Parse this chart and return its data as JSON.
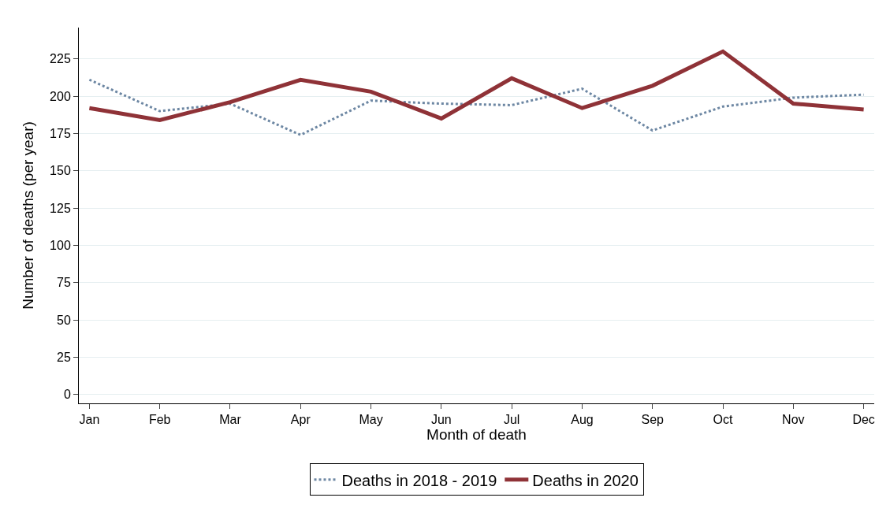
{
  "chart_data": {
    "type": "line",
    "xlabel": "Month of death",
    "ylabel": "Number of deaths (per year)",
    "categories": [
      "Jan",
      "Feb",
      "Mar",
      "Apr",
      "May",
      "Jun",
      "Jul",
      "Aug",
      "Sep",
      "Oct",
      "Nov",
      "Dec"
    ],
    "series": [
      {
        "name": "Deaths in 2018 - 2019",
        "color": "#6d87a3",
        "line_style": "dotted",
        "values": [
          211,
          190,
          195,
          174,
          197,
          195,
          194,
          205,
          177,
          193,
          199,
          201
        ]
      },
      {
        "name": "Deaths in 2020",
        "color": "#8f3237",
        "line_style": "solid",
        "values": [
          192,
          184,
          196,
          211,
          203,
          185,
          212,
          192,
          207,
          230,
          195,
          191
        ]
      }
    ],
    "ylim": [
      -6,
      246
    ],
    "yticks": [
      0,
      25,
      50,
      75,
      100,
      125,
      150,
      175,
      200,
      225
    ],
    "grid": "y",
    "legend": "bottom",
    "marker": "none"
  }
}
